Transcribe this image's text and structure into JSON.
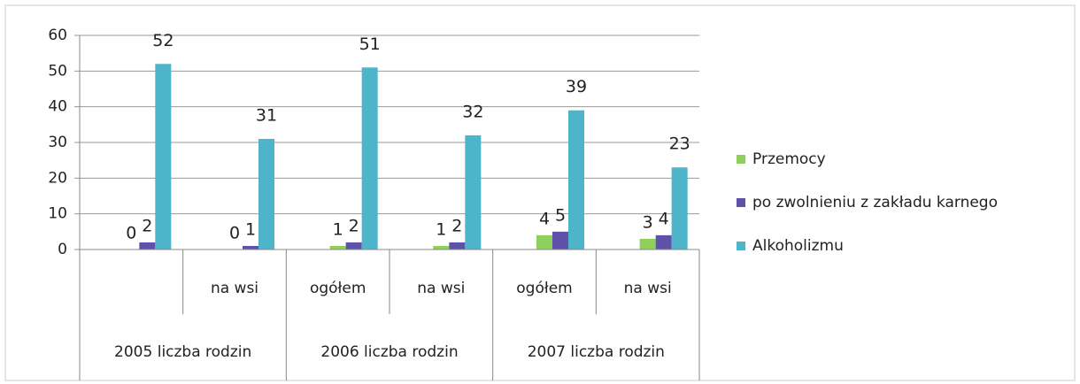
{
  "chart_data": {
    "type": "bar",
    "categories": [
      null,
      "na  wsi",
      "ogółem",
      "na wsi",
      "ogółem",
      "na wsi"
    ],
    "groups": [
      "2005 liczba rodzin",
      "2006 liczba rodzin",
      "2007 liczba rodzin"
    ],
    "series": [
      {
        "name": "Przemocy",
        "color": "#8fcf5c",
        "values": [
          0,
          0,
          1,
          1,
          4,
          3
        ]
      },
      {
        "name": "po zwolnieniu z zakładu karnego",
        "color": "#5e52a8",
        "values": [
          2,
          1,
          2,
          2,
          5,
          4
        ]
      },
      {
        "name": "Alkoholizmu",
        "color": "#4db4c9",
        "values": [
          52,
          31,
          51,
          32,
          39,
          23
        ]
      }
    ],
    "ylim": [
      0,
      60
    ],
    "yticks": [
      0,
      10,
      20,
      30,
      40,
      50,
      60
    ],
    "grid": true,
    "legend": "right"
  }
}
